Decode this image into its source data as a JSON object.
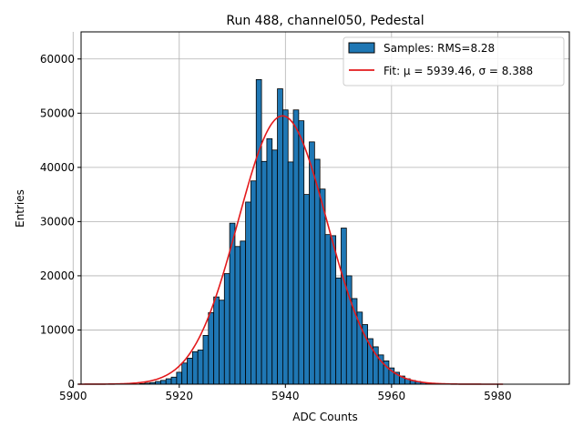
{
  "chart_data": {
    "type": "bar",
    "title": "Run 488, channel050, Pedestal",
    "xlabel": "ADC Counts",
    "ylabel": "Entries",
    "xlim": [
      5901.5,
      5993.5
    ],
    "ylim": [
      0,
      65000
    ],
    "xticks": [
      5900,
      5920,
      5940,
      5960,
      5980
    ],
    "yticks": [
      0,
      10000,
      20000,
      30000,
      40000,
      50000,
      60000
    ],
    "grid": true,
    "legend_position": "top-right",
    "colors": {
      "bars": "#1f77b4",
      "bar_edge": "#000000",
      "fit": "#e31a1c",
      "grid": "#b0b0b0"
    },
    "series": [
      {
        "name": "Samples: RMS=8.28",
        "type": "histogram",
        "bins": [
          5913,
          5914,
          5915,
          5916,
          5917,
          5918,
          5919,
          5920,
          5921,
          5922,
          5923,
          5924,
          5925,
          5926,
          5927,
          5928,
          5929,
          5930,
          5931,
          5932,
          5933,
          5934,
          5935,
          5936,
          5937,
          5938,
          5939,
          5940,
          5941,
          5942,
          5943,
          5944,
          5945,
          5946,
          5947,
          5948,
          5949,
          5950,
          5951,
          5952,
          5953,
          5954,
          5955,
          5956,
          5957,
          5958,
          5959,
          5960,
          5961,
          5962,
          5963,
          5964,
          5965,
          5966,
          5967,
          5968,
          5969,
          5970,
          5971
        ],
        "values": [
          100,
          200,
          300,
          500,
          700,
          1000,
          1300,
          2200,
          3900,
          4800,
          6000,
          6300,
          9000,
          13200,
          16100,
          15500,
          20400,
          29700,
          25400,
          26400,
          33600,
          37500,
          56200,
          41100,
          45300,
          43200,
          54500,
          50600,
          41000,
          50600,
          48600,
          35000,
          44700,
          41500,
          36000,
          27600,
          27400,
          19600,
          28800,
          20000,
          15800,
          13300,
          11000,
          8400,
          6900,
          5400,
          4300,
          3000,
          2200,
          1500,
          1000,
          700,
          500,
          300,
          200,
          100,
          60,
          30,
          10
        ],
        "bin_width": 1
      },
      {
        "name": "Fit: μ = 5939.46, σ = 8.388",
        "type": "line",
        "function": "gaussian",
        "mu": 5939.46,
        "sigma": 8.388,
        "amplitude": 49500,
        "x_range": [
          5901,
          5981
        ]
      }
    ]
  }
}
